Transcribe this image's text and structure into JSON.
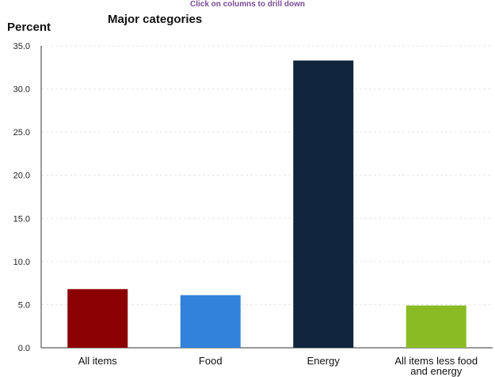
{
  "chart_hint": "Click on columns to drill down",
  "chart_data": {
    "type": "bar",
    "title": "Major categories",
    "ylabel": "Percent",
    "xlabel": "",
    "ylim": [
      0,
      35
    ],
    "yticks": [
      "0.0",
      "5.0",
      "10.0",
      "15.0",
      "20.0",
      "25.0",
      "30.0",
      "35.0"
    ],
    "categories": [
      "All items",
      "Food",
      "Energy",
      "All items less food and energy"
    ],
    "category_lines": [
      [
        "All items"
      ],
      [
        "Food"
      ],
      [
        "Energy"
      ],
      [
        "All items less food",
        "and energy"
      ]
    ],
    "values": [
      6.8,
      6.1,
      33.3,
      4.9
    ],
    "colors": [
      "#8b0000",
      "#3183d9",
      "#10253d",
      "#8bbb24"
    ],
    "grid": true
  }
}
